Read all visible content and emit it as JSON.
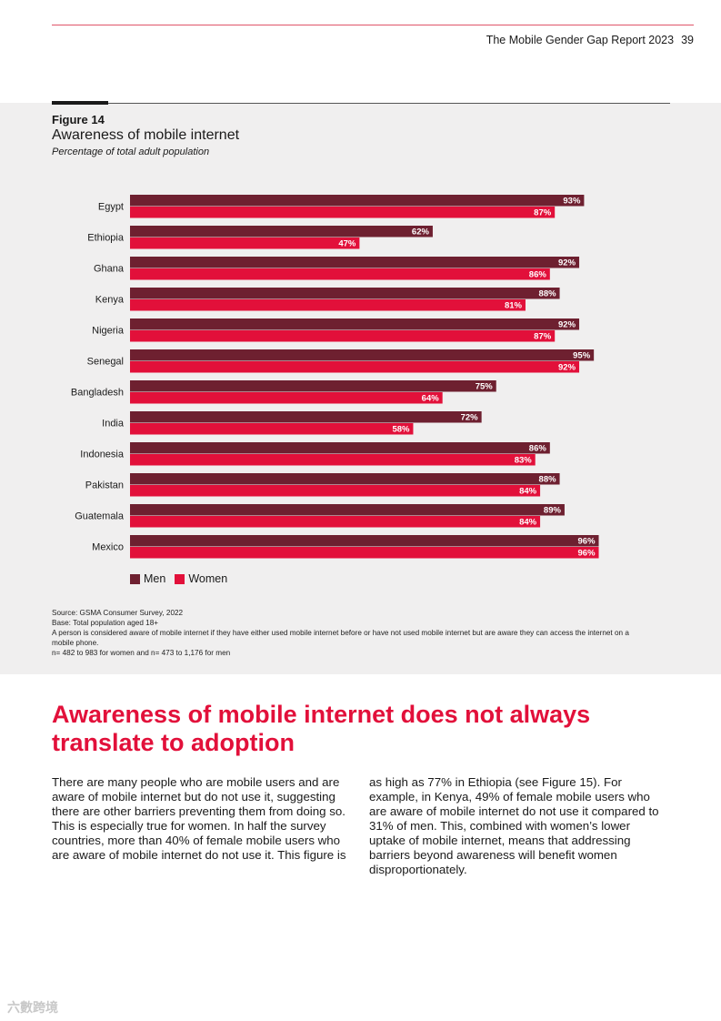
{
  "header": {
    "report_title": "The Mobile Gender Gap Report 2023",
    "page_number": "39"
  },
  "figure": {
    "label": "Figure 14",
    "title": "Awareness of mobile internet",
    "subtitle": "Percentage of total adult population"
  },
  "chart_data": {
    "type": "bar",
    "orientation": "horizontal",
    "categories": [
      "Egypt",
      "Ethiopia",
      "Ghana",
      "Kenya",
      "Nigeria",
      "Senegal",
      "Bangladesh",
      "India",
      "Indonesia",
      "Pakistan",
      "Guatemala",
      "Mexico"
    ],
    "series": [
      {
        "name": "Men",
        "color": "#6e2030",
        "values": [
          93,
          62,
          92,
          88,
          92,
          95,
          75,
          72,
          86,
          88,
          89,
          96
        ]
      },
      {
        "name": "Women",
        "color": "#e2103a",
        "values": [
          87,
          47,
          86,
          81,
          87,
          92,
          64,
          58,
          83,
          84,
          84,
          96
        ]
      }
    ],
    "value_suffix": "%",
    "xlim": [
      0,
      100
    ],
    "grid": false,
    "legend_position": "bottom-left"
  },
  "legend": {
    "men_label": "Men",
    "women_label": "Women"
  },
  "notes": {
    "source": "Source: GSMA Consumer Survey, 2022",
    "base": "Base: Total population aged 18+",
    "definition": "A person is considered aware of mobile internet if they have either used mobile internet before or have not used mobile internet but are aware they can access the internet on a mobile phone.",
    "sample": "n= 482 to 983 for women and n= 473 to 1,176 for men"
  },
  "section": {
    "heading": "Awareness of mobile internet does not always translate to adoption",
    "col_left": "There are many people who are mobile users and are aware of mobile internet but do not use it, suggesting there are other barriers preventing them from doing so. This is especially true for women. In half the survey countries, more than 40% of female mobile users who are aware of mobile internet do not use it. This figure is",
    "col_right": "as high as 77% in Ethiopia (see Figure 15). For example, in Kenya, 49% of female mobile users who are aware of mobile internet do not use it compared to 31% of men. This, combined with women’s lower uptake of mobile internet, means that addressing barriers beyond awareness will benefit women disproportionately."
  },
  "watermark": "六數跨境"
}
